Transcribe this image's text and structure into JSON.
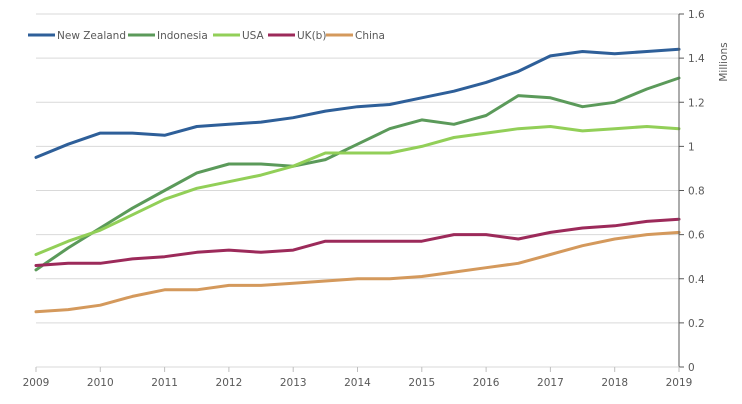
{
  "chart_data": {
    "type": "line",
    "title": "",
    "xlabel": "",
    "ylabel": "Millions",
    "xlim": [
      2009,
      2019
    ],
    "ylim": [
      0,
      1.6
    ],
    "x_ticks": [
      "2009",
      "2010",
      "2011",
      "2012",
      "2013",
      "2014",
      "2015",
      "2016",
      "2017",
      "2018",
      "2019"
    ],
    "y_ticks": [
      "0",
      "0.2",
      "0.4",
      "0.6",
      "0.8",
      "1",
      "1.2",
      "1.4",
      "1.6"
    ],
    "y_axis_side": "right",
    "grid": "horizontal",
    "legend_position": "top-left",
    "x": [
      2009,
      2009.5,
      2010,
      2010.5,
      2011,
      2011.5,
      2012,
      2012.5,
      2013,
      2013.5,
      2014,
      2014.5,
      2015,
      2015.5,
      2016,
      2016.5,
      2017,
      2017.5,
      2018,
      2018.5,
      2019
    ],
    "series": [
      {
        "name": "New Zealand",
        "color": "#2e5f99",
        "values": [
          0.95,
          1.01,
          1.06,
          1.06,
          1.05,
          1.09,
          1.1,
          1.11,
          1.13,
          1.16,
          1.18,
          1.19,
          1.22,
          1.25,
          1.29,
          1.34,
          1.41,
          1.43,
          1.42,
          1.43,
          1.44
        ]
      },
      {
        "name": "Indonesia",
        "color": "#5b9a5a",
        "values": [
          0.44,
          0.54,
          0.63,
          0.72,
          0.8,
          0.88,
          0.92,
          0.92,
          0.91,
          0.94,
          1.01,
          1.08,
          1.12,
          1.1,
          1.14,
          1.23,
          1.22,
          1.18,
          1.2,
          1.26,
          1.31
        ]
      },
      {
        "name": "USA",
        "color": "#92cf58",
        "values": [
          0.51,
          0.57,
          0.62,
          0.69,
          0.76,
          0.81,
          0.84,
          0.87,
          0.91,
          0.97,
          0.97,
          0.97,
          1.0,
          1.04,
          1.06,
          1.08,
          1.09,
          1.07,
          1.08,
          1.09,
          1.08
        ]
      },
      {
        "name": "UK(b)",
        "color": "#9c2a5a",
        "values": [
          0.46,
          0.47,
          0.47,
          0.49,
          0.5,
          0.52,
          0.53,
          0.52,
          0.53,
          0.57,
          0.57,
          0.57,
          0.57,
          0.6,
          0.6,
          0.58,
          0.61,
          0.63,
          0.64,
          0.66,
          0.67
        ]
      },
      {
        "name": "China",
        "color": "#d4995c",
        "values": [
          0.25,
          0.26,
          0.28,
          0.32,
          0.35,
          0.35,
          0.37,
          0.37,
          0.38,
          0.39,
          0.4,
          0.4,
          0.41,
          0.43,
          0.45,
          0.47,
          0.51,
          0.55,
          0.58,
          0.6,
          0.61
        ]
      }
    ]
  }
}
